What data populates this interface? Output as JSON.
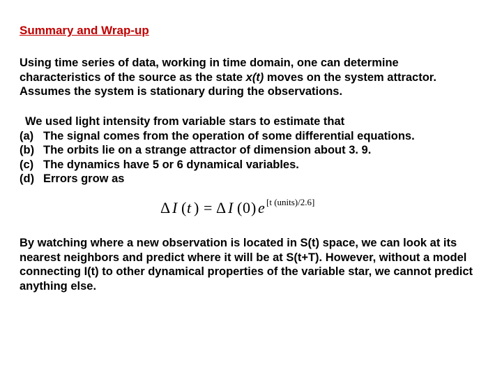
{
  "title": "Summary and Wrap-up",
  "para1_a": "  Using time series of data, working in time domain, one can determine characteristics of the source as the state ",
  "xt": "x(t)",
  "para1_b": " moves on the system attractor. Assumes the system is stationary during the observations.",
  "list_intro": "We used light intensity from variable stars to estimate that",
  "items": [
    {
      "label": "(a)",
      "text": "The signal comes from the operation of some differential equations."
    },
    {
      "label": "(b)",
      "text": "The orbits lie on a strange attractor of dimension about 3. 9."
    },
    {
      "label": "(c)",
      "text": "The dynamics have 5 or 6 dynamical variables."
    },
    {
      "label": "(d)",
      "text": "Errors grow as"
    }
  ],
  "equation": {
    "lhs_delta": "Δ",
    "lhs_I": "I",
    "lhs_arg": "t",
    "eq": "=",
    "rhs_delta": "Δ",
    "rhs_I": "I",
    "rhs_arg": "0",
    "e": "e",
    "exp_text": "[t (units)/2.6]",
    "font_family": "Times New Roman, serif",
    "color": "#000000"
  },
  "para2": "By watching where a new observation is located in S(t) space, we can look at its nearest neighbors and predict where it will be at S(t+T). However, without a model connecting I(t) to other dynamical properties of the variable star, we cannot predict anything else.",
  "colors": {
    "title": "#c00000",
    "text": "#000000",
    "background": "#ffffff"
  },
  "fontsize": {
    "title": 17,
    "body": 16.5
  }
}
